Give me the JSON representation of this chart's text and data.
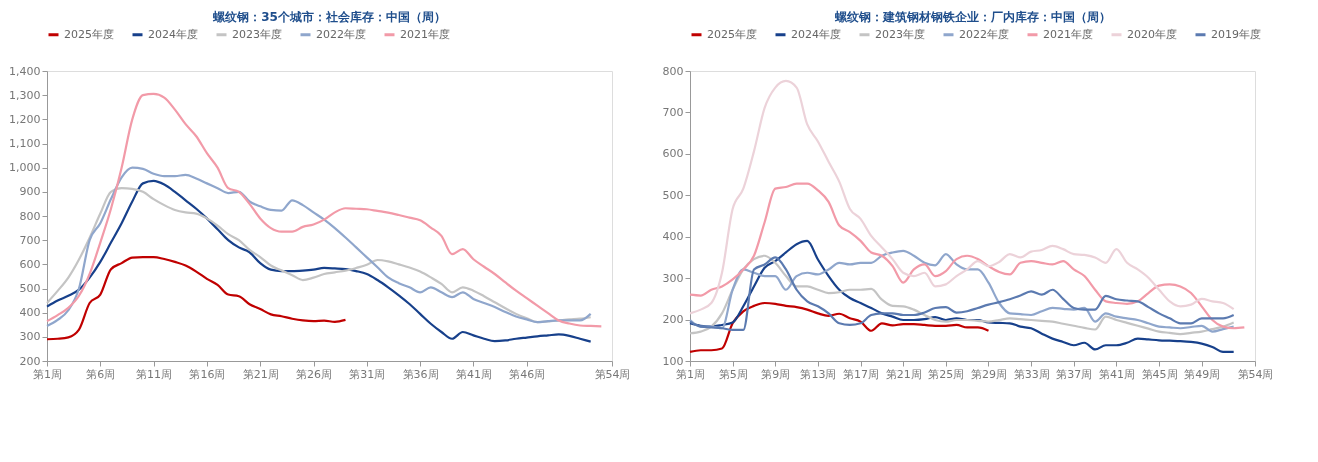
{
  "chart_data": [
    {
      "type": "line",
      "title": "螺纹钢：35个城市：社会库存：中国（周）",
      "legend": "top",
      "grid": false,
      "marker": "none",
      "line_style": "solid",
      "ylim": [
        200,
        1400
      ],
      "categories": [
        "第1周",
        null,
        null,
        null,
        null,
        "第6周",
        null,
        null,
        null,
        null,
        "第11周",
        null,
        null,
        null,
        null,
        "第16周",
        null,
        null,
        null,
        null,
        "第21周",
        null,
        null,
        null,
        null,
        "第26周",
        null,
        null,
        null,
        null,
        "第31周",
        null,
        null,
        null,
        null,
        "第36周",
        null,
        null,
        null,
        null,
        "第41周",
        null,
        null,
        null,
        null,
        "第46周",
        null,
        null,
        null,
        null,
        null,
        null,
        null,
        "第54周"
      ],
      "yticks": [
        200,
        300,
        400,
        500,
        600,
        700,
        800,
        900,
        {
          "value": 1000,
          "label": "1,000"
        },
        {
          "value": 1100,
          "label": "1,100"
        },
        {
          "value": 1200,
          "label": "1,200"
        },
        {
          "value": 1300,
          "label": "1,300"
        },
        {
          "value": 1400,
          "label": "1,400"
        }
      ],
      "series": [
        {
          "name": "2025年度",
          "color": "#c00000",
          "values": [
            290,
            292,
            298,
            330,
            440,
            475,
            580,
            605,
            628,
            630,
            630,
            622,
            610,
            595,
            570,
            540,
            515,
            475,
            468,
            435,
            415,
            393,
            385,
            375,
            368,
            365,
            367,
            362,
            370,
            null,
            null,
            null,
            null,
            null,
            null,
            null,
            null,
            null,
            null,
            null,
            null,
            null,
            null,
            null,
            null,
            null,
            null,
            null,
            null,
            null,
            null,
            null,
            null,
            null
          ]
        },
        {
          "name": "2024年度",
          "color": "#17408b",
          "values": [
            425,
            450,
            470,
            495,
            545,
            610,
            690,
            770,
            860,
            935,
            945,
            930,
            900,
            865,
            830,
            790,
            745,
            700,
            670,
            650,
            605,
            578,
            572,
            572,
            574,
            578,
            585,
            583,
            580,
            572,
            560,
            535,
            505,
            472,
            436,
            395,
            354,
            320,
            292,
            320,
            306,
            292,
            282,
            285,
            292,
            297,
            302,
            306,
            310,
            304,
            292,
            280,
            null,
            null
          ]
        },
        {
          "name": "2023年度",
          "color": "#c4c4c4",
          "values": [
            440,
            490,
            545,
            620,
            710,
            810,
            900,
            915,
            912,
            900,
            870,
            845,
            825,
            815,
            810,
            790,
            760,
            725,
            700,
            660,
            630,
            595,
            575,
            555,
            535,
            545,
            560,
            567,
            574,
            585,
            598,
            618,
            612,
            600,
            587,
            570,
            546,
            519,
            484,
            505,
            491,
            468,
            443,
            418,
            395,
            377,
            361,
            364,
            368,
            372,
            375,
            381,
            null,
            null
          ]
        },
        {
          "name": "2022年度",
          "color": "#8fa6cc",
          "values": [
            345,
            370,
            410,
            500,
            700,
            770,
            870,
            960,
            1000,
            995,
            975,
            965,
            965,
            970,
            955,
            935,
            915,
            895,
            900,
            860,
            840,
            825,
            822,
            865,
            845,
            815,
            785,
            750,
            711,
            670,
            629,
            588,
            546,
            522,
            505,
            484,
            505,
            484,
            464,
            484,
            457,
            440,
            423,
            403,
            384,
            372,
            361,
            365,
            368,
            368,
            368,
            395,
            null,
            null
          ]
        },
        {
          "name": "2021年度",
          "color": "#f29aa8",
          "values": [
            365,
            390,
            420,
            470,
            560,
            690,
            830,
            1000,
            1200,
            1300,
            1305,
            1290,
            1240,
            1180,
            1130,
            1060,
            1000,
            915,
            900,
            850,
            790,
            750,
            735,
            735,
            755,
            765,
            785,
            815,
            832,
            830,
            828,
            821,
            814,
            804,
            793,
            782,
            752,
            718,
            642,
            663,
            621,
            590,
            560,
            525,
            491,
            460,
            429,
            398,
            368,
            355,
            347,
            345,
            343,
            null
          ]
        }
      ]
    },
    {
      "type": "line",
      "title": "螺纹钢：建筑钢材钢铁企业：厂内库存：中国（周）",
      "legend": "top",
      "grid": false,
      "marker": "none",
      "line_style": "solid",
      "ylim": [
        100,
        800
      ],
      "categories": [
        "第1周",
        null,
        null,
        null,
        "第5周",
        null,
        null,
        null,
        "第9周",
        null,
        null,
        null,
        "第13周",
        null,
        null,
        null,
        "第17周",
        null,
        null,
        null,
        "第21周",
        null,
        null,
        null,
        "第25周",
        null,
        null,
        null,
        "第29周",
        null,
        null,
        null,
        "第33周",
        null,
        null,
        null,
        "第37周",
        null,
        null,
        null,
        "第41周",
        null,
        null,
        null,
        "第45周",
        null,
        null,
        null,
        "第49周",
        null,
        null,
        null,
        null,
        "第54周"
      ],
      "yticks": [
        100,
        200,
        300,
        400,
        500,
        600,
        700,
        800
      ],
      "series": [
        {
          "name": "2025年度",
          "color": "#c00000",
          "values": [
            122,
            126,
            126,
            130,
            191,
            220,
            233,
            240,
            238,
            233,
            230,
            224,
            215,
            209,
            214,
            203,
            195,
            173,
            191,
            186,
            189,
            189,
            187,
            185,
            185,
            187,
            181,
            181,
            173,
            null,
            null,
            null,
            null,
            null,
            null,
            null,
            null,
            null,
            null,
            null,
            null,
            null,
            null,
            null,
            null,
            null,
            null,
            null,
            null,
            null,
            null,
            null,
            null,
            null
          ]
        },
        {
          "name": "2024年度",
          "color": "#17408b",
          "values": [
            191,
            185,
            183,
            187,
            193,
            232,
            280,
            325,
            341,
            362,
            382,
            390,
            345,
            305,
            272,
            252,
            240,
            228,
            215,
            207,
            199,
            199,
            201,
            206,
            199,
            203,
            199,
            199,
            193,
            192,
            191,
            183,
            179,
            166,
            154,
            146,
            138,
            144,
            128,
            138,
            138,
            144,
            154,
            152,
            150,
            149,
            148,
            146,
            142,
            134,
            122,
            122,
            null,
            null
          ]
        },
        {
          "name": "2023年度",
          "color": "#c4c4c4",
          "values": [
            167,
            171,
            183,
            215,
            272,
            321,
            346,
            354,
            337,
            305,
            280,
            280,
            272,
            264,
            266,
            272,
            272,
            274,
            248,
            233,
            232,
            224,
            211,
            199,
            195,
            199,
            199,
            197,
            195,
            199,
            203,
            201,
            199,
            197,
            195,
            190,
            185,
            180,
            176,
            207,
            199,
            192,
            185,
            178,
            171,
            168,
            165,
            168,
            171,
            177,
            183,
            193,
            null,
            null
          ]
        },
        {
          "name": "2022年度",
          "color": "#8fa6cc",
          "values": [
            199,
            183,
            183,
            179,
            272,
            321,
            313,
            305,
            305,
            272,
            305,
            313,
            309,
            321,
            337,
            333,
            337,
            337,
            354,
            362,
            366,
            354,
            337,
            331,
            358,
            333,
            321,
            321,
            289,
            240,
            215,
            213,
            211,
            220,
            228,
            226,
            224,
            228,
            195,
            215,
            207,
            203,
            199,
            191,
            183,
            181,
            179,
            182,
            185,
            171,
            177,
            183,
            null,
            null
          ]
        },
        {
          "name": "2021年度",
          "color": "#f29aa8",
          "values": [
            260,
            258,
            272,
            280,
            297,
            321,
            354,
            435,
            516,
            520,
            528,
            528,
            512,
            484,
            427,
            411,
            390,
            362,
            354,
            329,
            289,
            321,
            333,
            305,
            317,
            346,
            354,
            346,
            329,
            315,
            309,
            337,
            341,
            337,
            333,
            341,
            321,
            305,
            272,
            244,
            240,
            238,
            244,
            264,
            282,
            285,
            280,
            264,
            232,
            199,
            183,
            179,
            181,
            null
          ]
        },
        {
          "name": "2020年度",
          "color": "#ecd2d9",
          "values": [
            215,
            224,
            240,
            313,
            467,
            516,
            606,
            711,
            760,
            776,
            760,
            671,
            630,
            581,
            533,
            467,
            443,
            402,
            374,
            346,
            313,
            305,
            313,
            280,
            285,
            305,
            321,
            341,
            329,
            339,
            358,
            350,
            364,
            368,
            378,
            370,
            358,
            356,
            350,
            337,
            370,
            337,
            321,
            301,
            272,
            244,
            232,
            236,
            250,
            244,
            240,
            225,
            null,
            null
          ]
        },
        {
          "name": "2019年度",
          "color": "#5b7ab0",
          "values": [
            195,
            183,
            181,
            179,
            175,
            175,
            321,
            333,
            350,
            321,
            272,
            244,
            232,
            215,
            191,
            187,
            191,
            211,
            215,
            215,
            211,
            211,
            217,
            228,
            230,
            217,
            220,
            228,
            236,
            242,
            249,
            258,
            268,
            260,
            272,
            250,
            228,
            224,
            224,
            257,
            249,
            246,
            244,
            230,
            215,
            203,
            191,
            191,
            203,
            203,
            203,
            211,
            null,
            null
          ]
        }
      ]
    }
  ]
}
